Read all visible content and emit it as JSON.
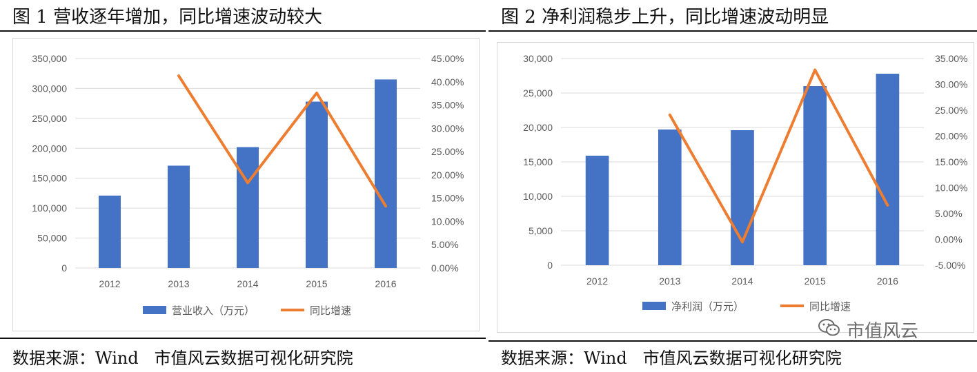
{
  "charts": [
    {
      "title": "图 1  营收逐年增加，同比增速波动较大",
      "source": "数据来源：Wind   市值风云数据可视化研究院",
      "chart_data": {
        "type": "bar",
        "categories": [
          "2012",
          "2013",
          "2014",
          "2015",
          "2016"
        ],
        "series": [
          {
            "name": "营业收入（万元）",
            "type": "bar",
            "axis": "left",
            "color": "#4472C4",
            "values": [
              121000,
              171000,
              202000,
              278000,
              315000
            ]
          },
          {
            "name": "同比增速",
            "type": "line",
            "axis": "right",
            "color": "#ED7D31",
            "values": [
              null,
              41.3,
              18.3,
              37.6,
              13.3
            ]
          }
        ],
        "y_left": {
          "min": 0,
          "max": 350000,
          "ticks": [
            "0",
            "50,000",
            "100,000",
            "150,000",
            "200,000",
            "250,000",
            "300,000",
            "350,000"
          ]
        },
        "y_right": {
          "min": 0,
          "max": 45,
          "ticks": [
            "0.00%",
            "5.00%",
            "10.00%",
            "15.00%",
            "20.00%",
            "25.00%",
            "30.00%",
            "35.00%",
            "40.00%",
            "45.00%"
          ]
        },
        "grid": true,
        "legend": "bottom"
      }
    },
    {
      "title": "图 2  净利润稳步上升，同比增速波动明显",
      "source": "数据来源：Wind   市值风云数据可视化研究院",
      "chart_data": {
        "type": "bar",
        "categories": [
          "2012",
          "2013",
          "2014",
          "2015",
          "2016"
        ],
        "series": [
          {
            "name": "净利润（万元）",
            "type": "bar",
            "axis": "left",
            "color": "#4472C4",
            "values": [
              15900,
              19700,
              19600,
              26000,
              27800
            ]
          },
          {
            "name": "同比增速",
            "type": "line",
            "axis": "right",
            "color": "#ED7D31",
            "values": [
              null,
              24.1,
              -0.5,
              32.8,
              6.6
            ]
          }
        ],
        "y_left": {
          "min": 0,
          "max": 30000,
          "ticks": [
            "0",
            "5,000",
            "10,000",
            "15,000",
            "20,000",
            "25,000",
            "30,000"
          ]
        },
        "y_right": {
          "min": -5,
          "max": 35,
          "ticks": [
            "-5.00%",
            "0.00%",
            "5.00%",
            "10.00%",
            "15.00%",
            "20.00%",
            "25.00%",
            "30.00%",
            "35.00%"
          ]
        },
        "grid": true,
        "legend": "bottom"
      }
    }
  ],
  "watermark": {
    "text": "市值风云",
    "icon": "wechat-icon"
  }
}
